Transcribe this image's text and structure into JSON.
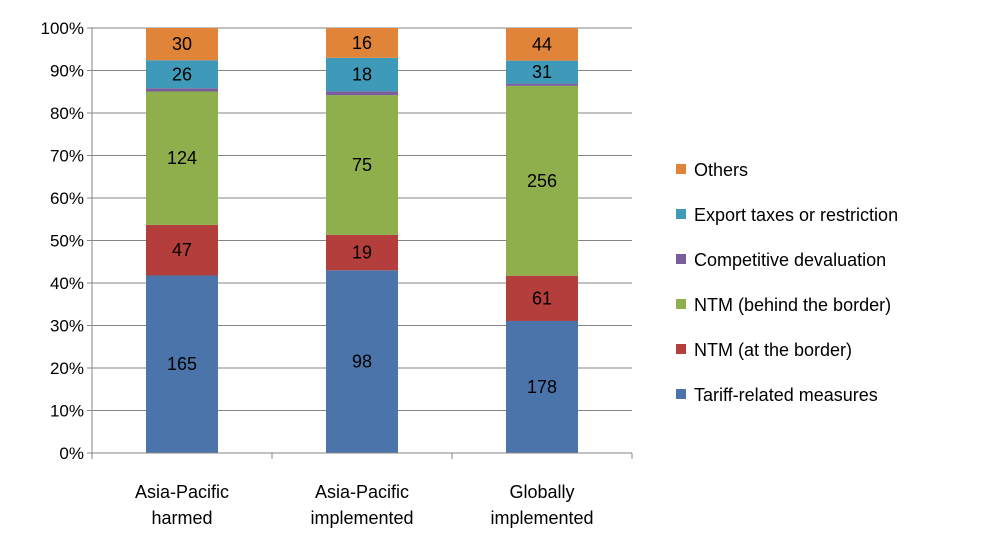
{
  "chart_data": {
    "type": "bar",
    "stacked": true,
    "normalized": true,
    "categories": [
      [
        "Asia-Pacific",
        "harmed"
      ],
      [
        "Asia-Pacific",
        "implemented"
      ],
      [
        "Globally",
        "implemented"
      ]
    ],
    "series": [
      {
        "name": "Tariff-related measures",
        "color": "#4A74AA",
        "values": [
          165,
          98,
          178
        ]
      },
      {
        "name": "NTM (at the border)",
        "color": "#B33E3B",
        "values": [
          47,
          19,
          61
        ]
      },
      {
        "name": "NTM (behind the border)",
        "color": "#8FAE4C",
        "values": [
          124,
          75,
          256
        ]
      },
      {
        "name": "Competitive devaluation",
        "color": "#7A5D9C",
        "values": [
          3,
          2,
          3
        ]
      },
      {
        "name": "Export taxes or restriction",
        "color": "#3E9AB8",
        "values": [
          26,
          18,
          31
        ]
      },
      {
        "name": "Others",
        "color": "#E0843A",
        "values": [
          30,
          16,
          44
        ]
      }
    ],
    "data_labels_hidden_for": [
      "Competitive devaluation"
    ],
    "ylim": [
      0,
      100
    ],
    "yticks": [
      "0%",
      "10%",
      "20%",
      "30%",
      "40%",
      "50%",
      "60%",
      "70%",
      "80%",
      "90%",
      "100%"
    ],
    "grid": true,
    "legend": "right",
    "legend_order": [
      "Others",
      "Export taxes or restriction",
      "Competitive devaluation",
      "NTM (behind the border)",
      "NTM (at the border)",
      "Tariff-related measures"
    ],
    "title": "",
    "xlabel": "",
    "ylabel": ""
  }
}
